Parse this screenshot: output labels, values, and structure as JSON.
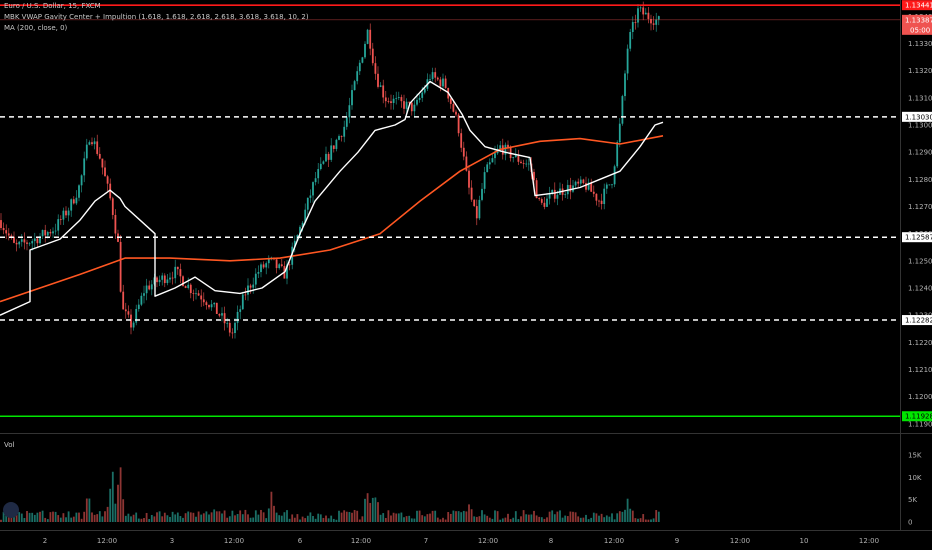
{
  "header": {
    "symbol_title": "Euro / U.S. Dollar, 15, FXCM",
    "indicator_1": "MBK VWAP Gavity Center + Impultion (1.618, 1.618, 2.618, 2.618, 3.618, 3.618, 10, 2)",
    "indicator_2": "MA (200, close, 0)"
  },
  "volume_pane": {
    "label": "Vol"
  },
  "colors": {
    "background": "#000000",
    "up_candle": "#26a69a",
    "down_candle": "#ef5350",
    "vwap_line": "#ffffff",
    "ma_line": "#ff5722",
    "resistance_line": "#ff1a1a",
    "support_line": "#00e600",
    "dashed_levels": "#ffffff",
    "price_tag": "#ef5350"
  },
  "chart_data": {
    "type": "candlestick",
    "symbol": "EURUSD",
    "timeframe": "15",
    "price_axis": {
      "ticks": [
        "1.13400",
        "1.13300",
        "1.13200",
        "1.13100",
        "1.13000",
        "1.12900",
        "1.12800",
        "1.12700",
        "1.12600",
        "1.12500",
        "1.12400",
        "1.12300",
        "1.12200",
        "1.12100",
        "1.12000",
        "1.11900"
      ],
      "range": [
        1.1187,
        1.1346
      ]
    },
    "time_axis": {
      "labels": [
        "2",
        "12:00",
        "3",
        "12:00",
        "6",
        "12:00",
        "7",
        "12:00",
        "8",
        "12:00",
        "9",
        "12:00",
        "10",
        "12:00"
      ]
    },
    "horizontal_levels": [
      {
        "price": 1.13441,
        "label": "1.13441",
        "style": "solid",
        "color": "#ff1a1a"
      },
      {
        "price": 1.1303,
        "label": "1.13030",
        "style": "dashed",
        "color": "#ffffff"
      },
      {
        "price": 1.12587,
        "label": "1.12587",
        "style": "dashed",
        "color": "#ffffff"
      },
      {
        "price": 1.12282,
        "label": "1.12282",
        "style": "dashed",
        "color": "#ffffff"
      },
      {
        "price": 1.11928,
        "label": "1.11928",
        "style": "solid",
        "color": "#00e600"
      }
    ],
    "last_price": {
      "price": 1.13387,
      "label": "1.13387",
      "countdown": "05:00"
    },
    "close_path": [
      [
        0,
        1.1265
      ],
      [
        15,
        1.1255
      ],
      [
        35,
        1.1258
      ],
      [
        55,
        1.1262
      ],
      [
        70,
        1.127
      ],
      [
        80,
        1.1278
      ],
      [
        90,
        1.1297
      ],
      [
        100,
        1.1288
      ],
      [
        112,
        1.127
      ],
      [
        118,
        1.1256
      ],
      [
        122,
        1.1232
      ],
      [
        132,
        1.1226
      ],
      [
        145,
        1.124
      ],
      [
        160,
        1.1243
      ],
      [
        175,
        1.1246
      ],
      [
        190,
        1.124
      ],
      [
        205,
        1.1236
      ],
      [
        220,
        1.123
      ],
      [
        232,
        1.1223
      ],
      [
        245,
        1.1238
      ],
      [
        258,
        1.1246
      ],
      [
        270,
        1.125
      ],
      [
        285,
        1.1245
      ],
      [
        300,
        1.1262
      ],
      [
        315,
        1.128
      ],
      [
        330,
        1.129
      ],
      [
        345,
        1.13
      ],
      [
        358,
        1.132
      ],
      [
        368,
        1.1335
      ],
      [
        376,
        1.1318
      ],
      [
        385,
        1.131
      ],
      [
        400,
        1.1308
      ],
      [
        415,
        1.1306
      ],
      [
        430,
        1.1318
      ],
      [
        445,
        1.1315
      ],
      [
        458,
        1.13
      ],
      [
        468,
        1.1278
      ],
      [
        476,
        1.1265
      ],
      [
        485,
        1.1282
      ],
      [
        500,
        1.1292
      ],
      [
        515,
        1.1288
      ],
      [
        530,
        1.1285
      ],
      [
        540,
        1.127
      ],
      [
        555,
        1.1275
      ],
      [
        570,
        1.1277
      ],
      [
        585,
        1.1278
      ],
      [
        600,
        1.1272
      ],
      [
        612,
        1.128
      ],
      [
        620,
        1.13
      ],
      [
        628,
        1.133
      ],
      [
        638,
        1.1342
      ],
      [
        648,
        1.134
      ],
      [
        660,
        1.1338
      ]
    ],
    "vwap_path": [
      [
        0,
        1.123
      ],
      [
        30,
        1.1235
      ],
      [
        30,
        1.1254
      ],
      [
        60,
        1.1258
      ],
      [
        80,
        1.1265
      ],
      [
        95,
        1.1272
      ],
      [
        110,
        1.1276
      ],
      [
        120,
        1.1273
      ],
      [
        125,
        1.127
      ],
      [
        155,
        1.126
      ],
      [
        155,
        1.1237
      ],
      [
        175,
        1.124
      ],
      [
        195,
        1.1244
      ],
      [
        215,
        1.1239
      ],
      [
        240,
        1.1238
      ],
      [
        262,
        1.124
      ],
      [
        285,
        1.1246
      ],
      [
        300,
        1.126
      ],
      [
        315,
        1.1272
      ],
      [
        340,
        1.1283
      ],
      [
        358,
        1.129
      ],
      [
        375,
        1.1298
      ],
      [
        395,
        1.13
      ],
      [
        405,
        1.1302
      ],
      [
        410,
        1.1308
      ],
      [
        430,
        1.1316
      ],
      [
        448,
        1.1312
      ],
      [
        462,
        1.1304
      ],
      [
        470,
        1.1298
      ],
      [
        485,
        1.1292
      ],
      [
        505,
        1.129
      ],
      [
        530,
        1.1288
      ],
      [
        535,
        1.1274
      ],
      [
        555,
        1.1275
      ],
      [
        580,
        1.1277
      ],
      [
        600,
        1.128
      ],
      [
        620,
        1.1283
      ],
      [
        640,
        1.1292
      ],
      [
        655,
        1.13
      ],
      [
        663,
        1.1301
      ]
    ],
    "ma_path": [
      [
        0,
        1.1235
      ],
      [
        40,
        1.124
      ],
      [
        80,
        1.1245
      ],
      [
        125,
        1.1251
      ],
      [
        170,
        1.1251
      ],
      [
        230,
        1.125
      ],
      [
        280,
        1.1251
      ],
      [
        330,
        1.1254
      ],
      [
        380,
        1.126
      ],
      [
        420,
        1.1272
      ],
      [
        460,
        1.1283
      ],
      [
        500,
        1.1291
      ],
      [
        540,
        1.1294
      ],
      [
        580,
        1.1295
      ],
      [
        620,
        1.1293
      ],
      [
        663,
        1.1296
      ]
    ],
    "volume_axis": {
      "ticks": [
        "15K",
        "10K",
        "5K",
        "0"
      ],
      "max": 17000
    },
    "volume_spikes": [
      [
        88,
        9000
      ],
      [
        112,
        14000
      ],
      [
        120,
        16000
      ],
      [
        215,
        5000
      ],
      [
        272,
        9000
      ],
      [
        368,
        11000
      ],
      [
        375,
        9000
      ],
      [
        470,
        5000
      ],
      [
        620,
        4000
      ],
      [
        628,
        7000
      ]
    ]
  }
}
